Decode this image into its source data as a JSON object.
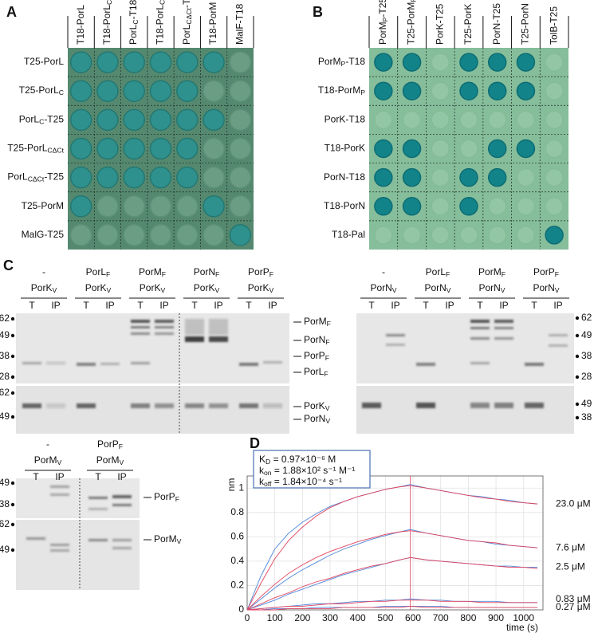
{
  "panel_a": {
    "letter": "A",
    "columns": [
      "T18-PorL",
      {
        "text": "T18-PorL",
        "sub": "C"
      },
      {
        "text": "PorL",
        "sub": "C",
        "after": "-T18"
      },
      {
        "text": "T18-PorL",
        "sub": "CΔCt"
      },
      {
        "text": "PorL",
        "sub": "CΔCt",
        "after": "-T18"
      },
      "T18-PorM",
      "MalF-T18"
    ],
    "rows": [
      "T25-PorL",
      {
        "text": "T25-PorL",
        "sub": "C"
      },
      {
        "text": "PorL",
        "sub": "C",
        "after": "-T25"
      },
      {
        "text": "T25-PorL",
        "sub": "CΔCt"
      },
      {
        "text": "PorL",
        "sub": "CΔCt",
        "after": "-T25"
      },
      "T25-PorM",
      "MalG-T25"
    ],
    "positive": [
      [
        1,
        1,
        1,
        1,
        1,
        1,
        0
      ],
      [
        1,
        1,
        1,
        1,
        1,
        0,
        0
      ],
      [
        1,
        1,
        1,
        1,
        1,
        1,
        0
      ],
      [
        1,
        1,
        1,
        1,
        1,
        0,
        0
      ],
      [
        1,
        1,
        1,
        1,
        1,
        0,
        0
      ],
      [
        1,
        0,
        0,
        0,
        0,
        1,
        0
      ],
      [
        0,
        0,
        0,
        0,
        0,
        0,
        1
      ]
    ]
  },
  "panel_b": {
    "letter": "B",
    "columns": [
      {
        "text": "PorM",
        "sub": "P",
        "after": "-T25"
      },
      {
        "text": "T25-PorM",
        "sub": "P"
      },
      "PorK-T25",
      "T25-PorK",
      "PorN-T25",
      "T25-PorN",
      "TolB-T25"
    ],
    "rows": [
      {
        "text": "PorM",
        "sub": "P",
        "after": "-T18"
      },
      {
        "text": "T18-PorM",
        "sub": "P"
      },
      "PorK-T18",
      "T18-PorK",
      "PorN-T18",
      "T18-PorN",
      "T18-Pal"
    ],
    "positive": [
      [
        1,
        1,
        0,
        1,
        1,
        1,
        0
      ],
      [
        1,
        1,
        0,
        1,
        1,
        1,
        0
      ],
      [
        0,
        0,
        0,
        0,
        0,
        0,
        0
      ],
      [
        1,
        1,
        0,
        0,
        1,
        1,
        0
      ],
      [
        1,
        1,
        0,
        1,
        1,
        0,
        0
      ],
      [
        1,
        1,
        0,
        1,
        0,
        0,
        0
      ],
      [
        0,
        0,
        0,
        0,
        0,
        0,
        1
      ]
    ]
  },
  "panel_c": {
    "letter": "C",
    "blot1": {
      "groups": [
        {
          "top": "-",
          "bottom": {
            "text": "PorK",
            "sub": "V"
          }
        },
        {
          "top": {
            "text": "PorL",
            "sub": "F"
          },
          "bottom": {
            "text": "PorK",
            "sub": "V"
          }
        },
        {
          "top": {
            "text": "PorM",
            "sub": "F"
          },
          "bottom": {
            "text": "PorK",
            "sub": "V"
          }
        },
        {
          "top": {
            "text": "PorN",
            "sub": "F"
          },
          "bottom": {
            "text": "PorK",
            "sub": "V"
          }
        },
        {
          "top": {
            "text": "PorP",
            "sub": "F"
          },
          "bottom": {
            "text": "PorK",
            "sub": "V"
          }
        }
      ],
      "lanes": [
        "T",
        "IP"
      ],
      "markers_top": [
        62,
        49,
        38,
        28
      ],
      "markers_bottom": [
        62,
        49
      ],
      "labels_top": [
        {
          "text": "PorM",
          "sub": "F"
        },
        {
          "text": "PorN",
          "sub": "F"
        },
        {
          "text": "PorP",
          "sub": "F"
        },
        {
          "text": "PorL",
          "sub": "F"
        }
      ],
      "labels_bottom": [
        {
          "text": "PorK",
          "sub": "V"
        },
        {
          "text": "PorN",
          "sub": "V"
        }
      ]
    },
    "blot2": {
      "groups": [
        {
          "top": "-",
          "bottom": {
            "text": "PorN",
            "sub": "V"
          }
        },
        {
          "top": {
            "text": "PorL",
            "sub": "F"
          },
          "bottom": {
            "text": "PorN",
            "sub": "V"
          }
        },
        {
          "top": {
            "text": "PorM",
            "sub": "F"
          },
          "bottom": {
            "text": "PorN",
            "sub": "V"
          }
        },
        {
          "top": {
            "text": "PorP",
            "sub": "F"
          },
          "bottom": {
            "text": "PorN",
            "sub": "V"
          }
        }
      ],
      "lanes": [
        "T",
        "IP"
      ],
      "markers_top": [
        62,
        49,
        38,
        28
      ],
      "markers_bottom": [
        49,
        38
      ]
    },
    "blot3": {
      "groups": [
        {
          "top": "-",
          "bottom": {
            "text": "PorM",
            "sub": "V"
          }
        },
        {
          "top": {
            "text": "PorP",
            "sub": "F"
          },
          "bottom": {
            "text": "PorM",
            "sub": "V"
          }
        }
      ],
      "lanes": [
        "T",
        "IP"
      ],
      "markers_top": [
        49,
        38
      ],
      "markers_bottom": [
        62,
        49
      ],
      "labels": [
        {
          "text": "PorP",
          "sub": "F"
        },
        {
          "text": "PorM",
          "sub": "V"
        }
      ]
    }
  },
  "panel_d": {
    "letter": "D"
  },
  "chart_data": {
    "type": "line",
    "y_label": "nm",
    "x_label": "time (s)",
    "annotation": [
      {
        "text": "K",
        "sub": "D",
        "after": " = 0.97×10⁻⁶ M"
      },
      {
        "text": "k",
        "sub": "on",
        "after": " = 1.88×10² s⁻¹ M⁻¹"
      },
      {
        "text": "k",
        "sub": "off",
        "after": " = 1.84×10⁻⁴ s⁻¹"
      }
    ],
    "x": [
      0,
      50,
      100,
      150,
      200,
      250,
      300,
      350,
      400,
      450,
      500,
      550,
      590,
      650,
      700,
      750,
      800,
      850,
      900,
      950,
      1000,
      1050
    ],
    "series": [
      {
        "name": "23.0 μM",
        "values": [
          0,
          0.28,
          0.5,
          0.63,
          0.72,
          0.79,
          0.85,
          0.89,
          0.93,
          0.96,
          0.99,
          1.01,
          1.03,
          1.0,
          0.98,
          0.96,
          0.94,
          0.93,
          0.91,
          0.9,
          0.88,
          0.87
        ],
        "fit": [
          0,
          0.22,
          0.42,
          0.57,
          0.68,
          0.77,
          0.84,
          0.89,
          0.93,
          0.96,
          0.99,
          1.01,
          1.02,
          1.0,
          0.98,
          0.96,
          0.94,
          0.92,
          0.91,
          0.89,
          0.88,
          0.87
        ]
      },
      {
        "name": "7.6 μM",
        "values": [
          0,
          0.09,
          0.18,
          0.26,
          0.33,
          0.39,
          0.45,
          0.5,
          0.54,
          0.58,
          0.61,
          0.64,
          0.66,
          0.63,
          0.61,
          0.59,
          0.57,
          0.56,
          0.54,
          0.53,
          0.52,
          0.51
        ],
        "fit": [
          0,
          0.11,
          0.21,
          0.3,
          0.37,
          0.43,
          0.48,
          0.52,
          0.56,
          0.59,
          0.62,
          0.64,
          0.65,
          0.63,
          0.61,
          0.59,
          0.57,
          0.56,
          0.55,
          0.53,
          0.52,
          0.51
        ]
      },
      {
        "name": "2.5 μM",
        "values": [
          0,
          0.04,
          0.08,
          0.13,
          0.17,
          0.21,
          0.25,
          0.29,
          0.32,
          0.35,
          0.38,
          0.41,
          0.43,
          0.41,
          0.4,
          0.39,
          0.38,
          0.37,
          0.36,
          0.36,
          0.35,
          0.35
        ],
        "fit": [
          0,
          0.05,
          0.1,
          0.14,
          0.19,
          0.23,
          0.26,
          0.3,
          0.33,
          0.36,
          0.38,
          0.41,
          0.43,
          0.41,
          0.4,
          0.39,
          0.38,
          0.37,
          0.36,
          0.35,
          0.35,
          0.34
        ]
      },
      {
        "name": "0.83 μM",
        "values": [
          0,
          0.01,
          0.02,
          0.03,
          0.04,
          0.05,
          0.05,
          0.06,
          0.07,
          0.07,
          0.08,
          0.08,
          0.09,
          0.08,
          0.08,
          0.07,
          0.07,
          0.07,
          0.07,
          0.06,
          0.06,
          0.06
        ],
        "fit": [
          0,
          0.01,
          0.02,
          0.03,
          0.03,
          0.04,
          0.05,
          0.05,
          0.06,
          0.07,
          0.07,
          0.08,
          0.08,
          0.08,
          0.07,
          0.07,
          0.07,
          0.06,
          0.06,
          0.06,
          0.06,
          0.06
        ]
      },
      {
        "name": "0.27 μM",
        "values": [
          0,
          0,
          0.01,
          0.01,
          0.01,
          0.02,
          0.02,
          0.02,
          0.02,
          0.02,
          0.03,
          0.03,
          0.03,
          0.03,
          0.03,
          0.02,
          0.02,
          0.02,
          0.02,
          0.02,
          0.02,
          0.02
        ],
        "fit": [
          0,
          0,
          0,
          0.01,
          0.01,
          0.01,
          0.01,
          0.02,
          0.02,
          0.02,
          0.02,
          0.02,
          0.03,
          0.02,
          0.02,
          0.02,
          0.02,
          0.02,
          0.02,
          0.02,
          0.02,
          0.02
        ]
      }
    ],
    "data_color": "#4f86d9",
    "fit_color": "#e2435f",
    "vline_x": 590,
    "xlim": [
      0,
      1070
    ],
    "ylim": [
      0,
      1.1
    ],
    "xticks": [
      0,
      100,
      200,
      300,
      400,
      500,
      600,
      700,
      800,
      900,
      1000
    ],
    "yticks": [
      0,
      0.2,
      0.4,
      0.6,
      0.8,
      1
    ],
    "grid": true
  }
}
